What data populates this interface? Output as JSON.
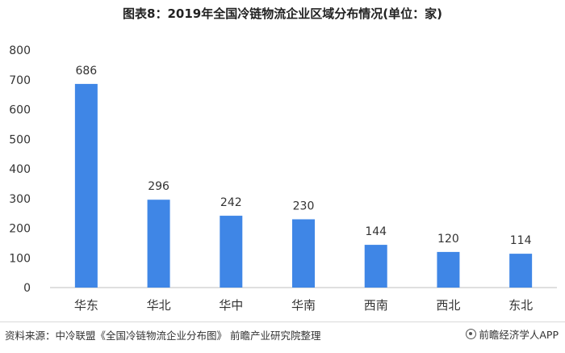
{
  "title": "图表8：2019年全国冷链物流企业区域分布情况(单位：家)",
  "chart_data": {
    "type": "bar",
    "title": "图表8：2019年全国冷链物流企业区域分布情况(单位：家)",
    "categories": [
      "华东",
      "华北",
      "华中",
      "华南",
      "西南",
      "西北",
      "东北"
    ],
    "values": [
      686,
      296,
      242,
      230,
      144,
      120,
      114
    ],
    "ylim": [
      0,
      800
    ],
    "yticks": [
      0,
      100,
      200,
      300,
      400,
      500,
      600,
      700,
      800
    ],
    "xlabel": "",
    "ylabel": "",
    "grid": false,
    "bar_color": "#3f86e6"
  },
  "footer": {
    "source": "资料来源：中冷联盟《全国冷链物流企业分布图》 前瞻产业研究院整理",
    "brand": "前瞻经济学人APP",
    "brand_icon": "brand-logo-icon"
  }
}
